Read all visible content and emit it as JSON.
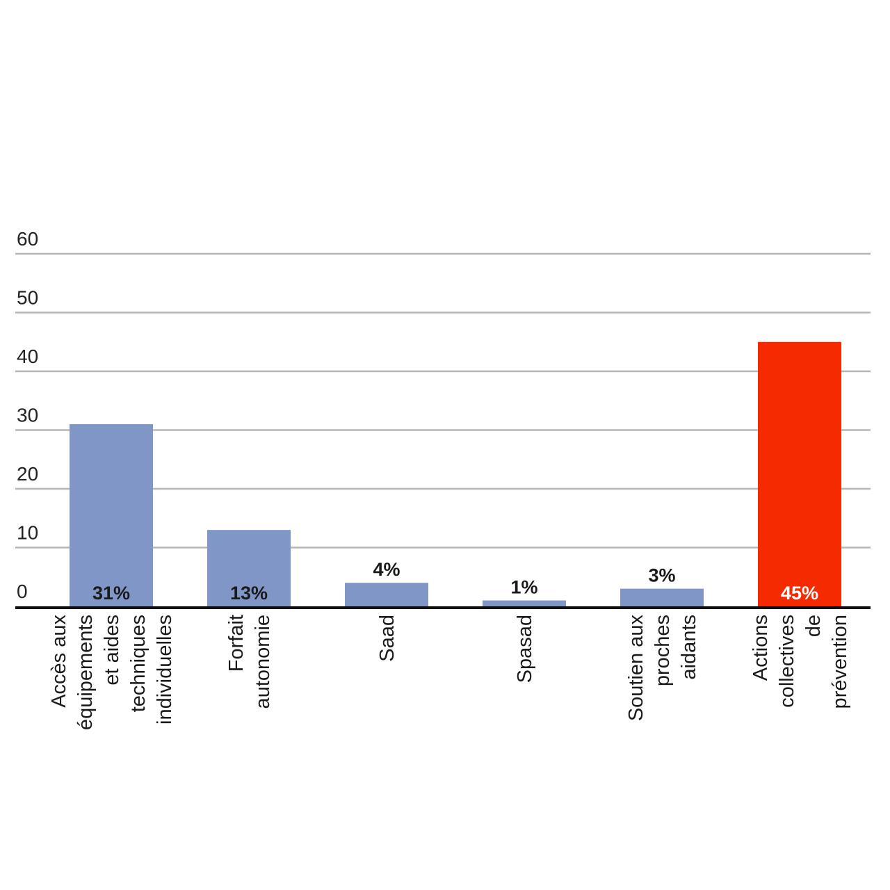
{
  "chart_data": {
    "type": "bar",
    "categories": [
      [
        "Accès aux",
        "équipements",
        "et aides",
        "techniques",
        "individuelles"
      ],
      [
        "Forfait",
        "autonomie"
      ],
      [
        "Saad"
      ],
      [
        "Spasad"
      ],
      [
        "Soutien aux",
        "proches",
        "aidants"
      ],
      [
        "Actions",
        "collectives",
        "de",
        "prévention"
      ]
    ],
    "values": [
      31,
      13,
      4,
      1,
      3,
      45
    ],
    "data_labels": [
      "31%",
      "13%",
      "4%",
      "1%",
      "3%",
      "45%"
    ],
    "label_inside": [
      true,
      true,
      false,
      false,
      false,
      true
    ],
    "bar_colors": [
      "#7f96c7",
      "#7f96c7",
      "#7f96c7",
      "#7f96c7",
      "#7f96c7",
      "#f52a00"
    ],
    "yticks": [
      "0",
      "10",
      "20",
      "30",
      "40",
      "50",
      "60"
    ],
    "ylim": [
      0,
      60
    ],
    "grid": true,
    "legend": "none"
  }
}
